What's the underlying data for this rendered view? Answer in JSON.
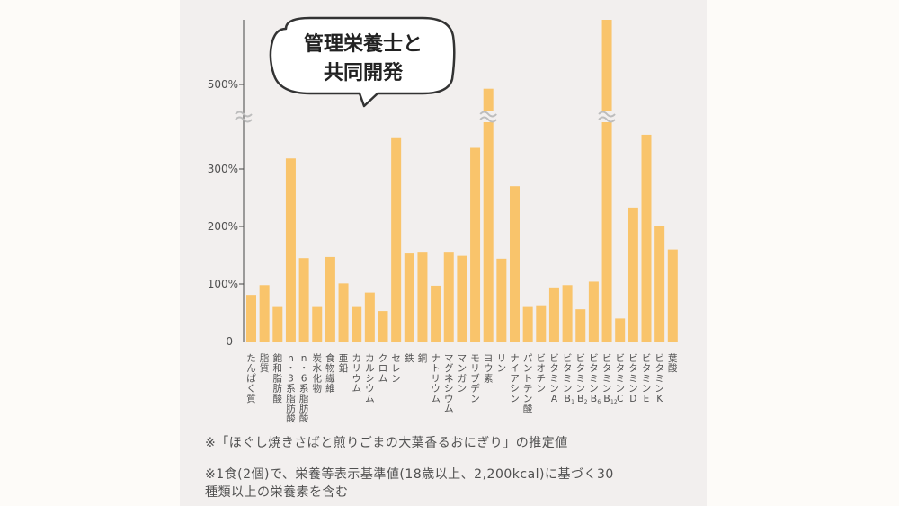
{
  "bubble": {
    "line1": "管理栄養士と",
    "line2": "共同開発"
  },
  "notes": {
    "note1": "※「ほぐし焼きさばと煎りごまの大葉香るおにぎり」の推定値",
    "note2_line1": "※1食(2個)で、栄養等表示基準値(18歳以上、2,200kcal)に基づく30",
    "note2_line2": "種類以上の栄養素を含む"
  },
  "colors": {
    "bar": "#f9c46b",
    "panel": "#f2efee",
    "axis": "#444444",
    "text": "#505050"
  },
  "chart_data": {
    "type": "bar",
    "title": "",
    "xlabel": "",
    "ylabel": "",
    "ylim": [
      0,
      600
    ],
    "axis_break": "between 300% and 500% (wavy break marks)",
    "yticks": [
      {
        "value": 0,
        "label": "0"
      },
      {
        "value": 100,
        "label": "100%"
      },
      {
        "value": 200,
        "label": "200%"
      },
      {
        "value": 300,
        "label": "300%"
      },
      {
        "value": 500,
        "label": "500%"
      }
    ],
    "categories": [
      [
        "たんぱく質"
      ],
      [
        "脂質"
      ],
      [
        "飽和脂肪酸"
      ],
      [
        "n",
        "・",
        "3系脂肪酸"
      ],
      [
        "n",
        "・",
        "6系脂肪酸"
      ],
      [
        "炭水化物"
      ],
      [
        "食物繊維"
      ],
      [
        "亜鉛"
      ],
      [
        "カリウム"
      ],
      [
        "カルシウム"
      ],
      [
        "クロム"
      ],
      [
        "セレン"
      ],
      [
        "鉄"
      ],
      [
        "銅"
      ],
      [
        "ナトリウム"
      ],
      [
        "マグネシウム"
      ],
      [
        "マンガン"
      ],
      [
        "モリブデン"
      ],
      [
        "ヨウ素"
      ],
      [
        "リン"
      ],
      [
        "ナイアシン"
      ],
      [
        "パントテン酸"
      ],
      [
        "ビオチン"
      ],
      [
        "ビタミン",
        "A"
      ],
      [
        "ビタミン",
        "B1"
      ],
      [
        "ビタミン",
        "B2"
      ],
      [
        "ビタミン",
        "B6"
      ],
      [
        "ビタミン",
        "B12"
      ],
      [
        "ビタミン",
        "C"
      ],
      [
        "ビタミン",
        "D"
      ],
      [
        "ビタミン",
        "E"
      ],
      [
        "ビタミン",
        "K"
      ],
      [
        "葉酸"
      ]
    ],
    "values": [
      81,
      98,
      60,
      325,
      145,
      60,
      147,
      101,
      60,
      85,
      53,
      375,
      153,
      156,
      97,
      156,
      149,
      350,
      490,
      144,
      270,
      60,
      63,
      94,
      98,
      56,
      104,
      600,
      40,
      233,
      381,
      200,
      160
    ],
    "break_bars": [
      "ヨウ素",
      "ビタミンB12"
    ]
  }
}
